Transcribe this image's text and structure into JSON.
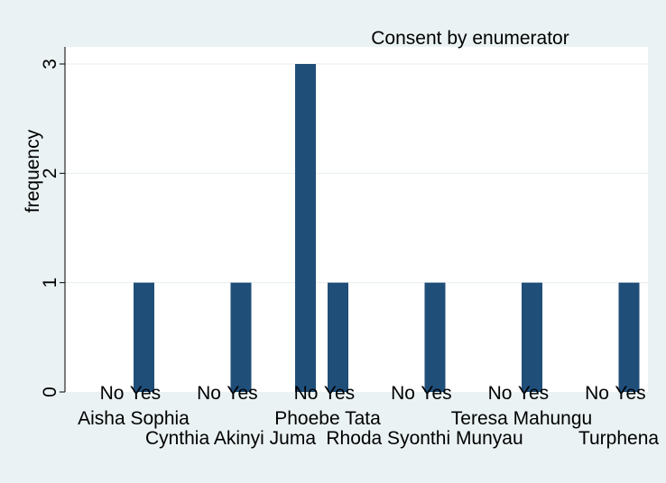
{
  "chart_data": {
    "type": "bar",
    "title": "Consent by enumerator",
    "ylabel": "frequency",
    "xlabel": "",
    "ylim": [
      0,
      3
    ],
    "y_ticks": [
      0,
      1,
      2,
      3
    ],
    "grid": true,
    "bar_color": "#1f4e79",
    "plot_background": "#ffffff",
    "outer_background": "#eaf2f3",
    "groups": [
      {
        "name": "Aisha Sophia",
        "categories": [
          "No",
          "Yes"
        ],
        "values": [
          0,
          1
        ]
      },
      {
        "name": "Cynthia Akinyi Juma",
        "categories": [
          "No",
          "Yes"
        ],
        "values": [
          0,
          1
        ]
      },
      {
        "name": "Phoebe Tata",
        "categories": [
          "No",
          "Yes"
        ],
        "values": [
          3,
          1
        ]
      },
      {
        "name": "Rhoda Syonthi Munyau",
        "categories": [
          "No",
          "Yes"
        ],
        "values": [
          0,
          1
        ]
      },
      {
        "name": "Teresa Mahungu",
        "categories": [
          "No",
          "Yes"
        ],
        "values": [
          0,
          1
        ]
      },
      {
        "name": "Turphena",
        "categories": [
          "No",
          "Yes"
        ],
        "values": [
          0,
          1
        ]
      }
    ]
  }
}
